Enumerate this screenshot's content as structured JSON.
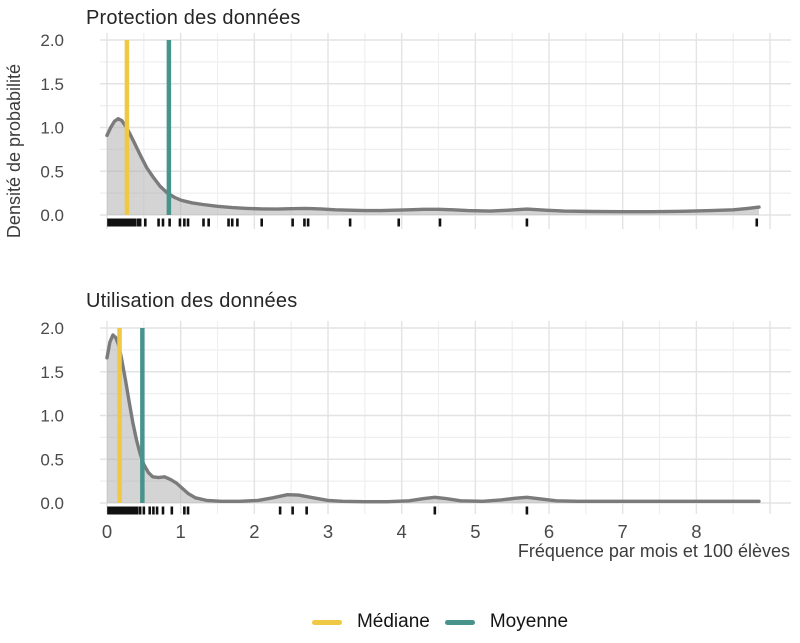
{
  "figure": {
    "y_axis_title": "Densité de probabilité",
    "x_axis_title": "Fréquence par mois et 100 élèves"
  },
  "legend": {
    "position": "bottom",
    "items": [
      {
        "id": "median",
        "label": "Médiane",
        "color": "#EFC845"
      },
      {
        "id": "mean",
        "label": "Moyenne",
        "color": "#48948D"
      }
    ]
  },
  "style": {
    "curve_color": "#7B7B7B",
    "fill_color": "#B0B0B0",
    "fill_opacity": 0.55,
    "grid_major_color": "#E3E3E3",
    "grid_minor_color": "#EFEFEF",
    "rug_color": "#111111",
    "tick_label_color": "#4A4A4A",
    "title_color": "#262626",
    "axis_title_color": "#3C3C3C",
    "median_color": "#EFC845",
    "mean_color": "#48948D",
    "background": "#FFFFFF"
  },
  "chart_data": [
    {
      "type": "area",
      "title": "Protection des données",
      "xlabel": "Fréquence par mois et 100 élèves",
      "ylabel": "Densité de probabilité",
      "xlim": [
        0,
        9.3
      ],
      "ylim": [
        0,
        2.0
      ],
      "xticks": [
        0,
        1,
        2,
        3,
        4,
        5,
        6,
        7,
        8
      ],
      "yticks": [
        0,
        0.5,
        1.0,
        1.5,
        2.0
      ],
      "ytick_labels": [
        "0.0",
        "0.5",
        "1.0",
        "1.5",
        "2.0"
      ],
      "grid": "on",
      "median": 0.27,
      "mean": 0.84,
      "curve": [
        [
          0,
          0.91
        ],
        [
          0.05,
          1.0
        ],
        [
          0.1,
          1.07
        ],
        [
          0.15,
          1.1
        ],
        [
          0.2,
          1.08
        ],
        [
          0.25,
          1.02
        ],
        [
          0.31,
          0.93
        ],
        [
          0.38,
          0.81
        ],
        [
          0.46,
          0.67
        ],
        [
          0.54,
          0.54
        ],
        [
          0.62,
          0.44
        ],
        [
          0.72,
          0.33
        ],
        [
          0.82,
          0.25
        ],
        [
          0.92,
          0.2
        ],
        [
          1.0,
          0.17
        ],
        [
          1.15,
          0.14
        ],
        [
          1.3,
          0.12
        ],
        [
          1.5,
          0.1
        ],
        [
          1.7,
          0.085
        ],
        [
          1.9,
          0.075
        ],
        [
          2.1,
          0.07
        ],
        [
          2.3,
          0.068
        ],
        [
          2.5,
          0.072
        ],
        [
          2.7,
          0.075
        ],
        [
          2.9,
          0.07
        ],
        [
          3.1,
          0.06
        ],
        [
          3.3,
          0.055
        ],
        [
          3.5,
          0.05
        ],
        [
          3.7,
          0.05
        ],
        [
          3.9,
          0.055
        ],
        [
          4.1,
          0.06
        ],
        [
          4.3,
          0.065
        ],
        [
          4.5,
          0.065
        ],
        [
          4.7,
          0.06
        ],
        [
          4.9,
          0.05
        ],
        [
          5.2,
          0.045
        ],
        [
          5.45,
          0.055
        ],
        [
          5.7,
          0.068
        ],
        [
          5.95,
          0.055
        ],
        [
          6.2,
          0.045
        ],
        [
          6.6,
          0.04
        ],
        [
          7.0,
          0.038
        ],
        [
          7.4,
          0.038
        ],
        [
          7.8,
          0.042
        ],
        [
          8.2,
          0.05
        ],
        [
          8.5,
          0.06
        ],
        [
          8.7,
          0.075
        ],
        [
          8.85,
          0.09
        ]
      ],
      "rug": [
        0.02,
        0.05,
        0.07,
        0.09,
        0.11,
        0.13,
        0.15,
        0.17,
        0.19,
        0.21,
        0.23,
        0.26,
        0.29,
        0.32,
        0.35,
        0.38,
        0.42,
        0.45,
        0.52,
        0.7,
        0.76,
        0.85,
        0.99,
        1.05,
        1.1,
        1.31,
        1.38,
        1.65,
        1.7,
        1.77,
        2.1,
        2.52,
        2.68,
        2.73,
        3.3,
        3.96,
        4.52,
        5.7,
        8.82
      ]
    },
    {
      "type": "area",
      "title": "Utilisation des données",
      "xlabel": "Fréquence par mois et 100 élèves",
      "ylabel": "Densité de probabilité",
      "xlim": [
        0,
        9.3
      ],
      "ylim": [
        0,
        2.0
      ],
      "xticks": [
        0,
        1,
        2,
        3,
        4,
        5,
        6,
        7,
        8
      ],
      "yticks": [
        0,
        0.5,
        1.0,
        1.5,
        2.0
      ],
      "ytick_labels": [
        "0.0",
        "0.5",
        "1.0",
        "1.5",
        "2.0"
      ],
      "grid": "on",
      "median": 0.17,
      "mean": 0.48,
      "curve": [
        [
          0,
          1.66
        ],
        [
          0.04,
          1.84
        ],
        [
          0.08,
          1.92
        ],
        [
          0.12,
          1.89
        ],
        [
          0.16,
          1.8
        ],
        [
          0.2,
          1.64
        ],
        [
          0.25,
          1.41
        ],
        [
          0.3,
          1.16
        ],
        [
          0.35,
          0.92
        ],
        [
          0.4,
          0.72
        ],
        [
          0.45,
          0.56
        ],
        [
          0.5,
          0.44
        ],
        [
          0.56,
          0.35
        ],
        [
          0.62,
          0.3
        ],
        [
          0.7,
          0.29
        ],
        [
          0.78,
          0.3
        ],
        [
          0.86,
          0.27
        ],
        [
          0.94,
          0.23
        ],
        [
          1.02,
          0.17
        ],
        [
          1.1,
          0.11
        ],
        [
          1.2,
          0.06
        ],
        [
          1.35,
          0.03
        ],
        [
          1.55,
          0.02
        ],
        [
          1.8,
          0.02
        ],
        [
          2.05,
          0.03
        ],
        [
          2.25,
          0.06
        ],
        [
          2.45,
          0.095
        ],
        [
          2.6,
          0.09
        ],
        [
          2.8,
          0.06
        ],
        [
          3.0,
          0.03
        ],
        [
          3.2,
          0.02
        ],
        [
          3.5,
          0.015
        ],
        [
          3.8,
          0.015
        ],
        [
          4.1,
          0.025
        ],
        [
          4.3,
          0.05
        ],
        [
          4.45,
          0.065
        ],
        [
          4.6,
          0.05
        ],
        [
          4.8,
          0.025
        ],
        [
          5.1,
          0.02
        ],
        [
          5.35,
          0.035
        ],
        [
          5.55,
          0.055
        ],
        [
          5.7,
          0.065
        ],
        [
          5.9,
          0.045
        ],
        [
          6.1,
          0.025
        ],
        [
          6.4,
          0.02
        ],
        [
          6.8,
          0.02
        ],
        [
          7.2,
          0.02
        ],
        [
          7.6,
          0.02
        ],
        [
          8.0,
          0.02
        ],
        [
          8.4,
          0.02
        ],
        [
          8.85,
          0.02
        ]
      ],
      "rug": [
        0.02,
        0.05,
        0.08,
        0.11,
        0.14,
        0.17,
        0.2,
        0.23,
        0.26,
        0.29,
        0.32,
        0.35,
        0.38,
        0.41,
        0.45,
        0.5,
        0.58,
        0.63,
        0.68,
        0.76,
        0.88,
        1.05,
        1.1,
        2.35,
        2.52,
        2.71,
        4.45,
        5.7
      ]
    }
  ]
}
